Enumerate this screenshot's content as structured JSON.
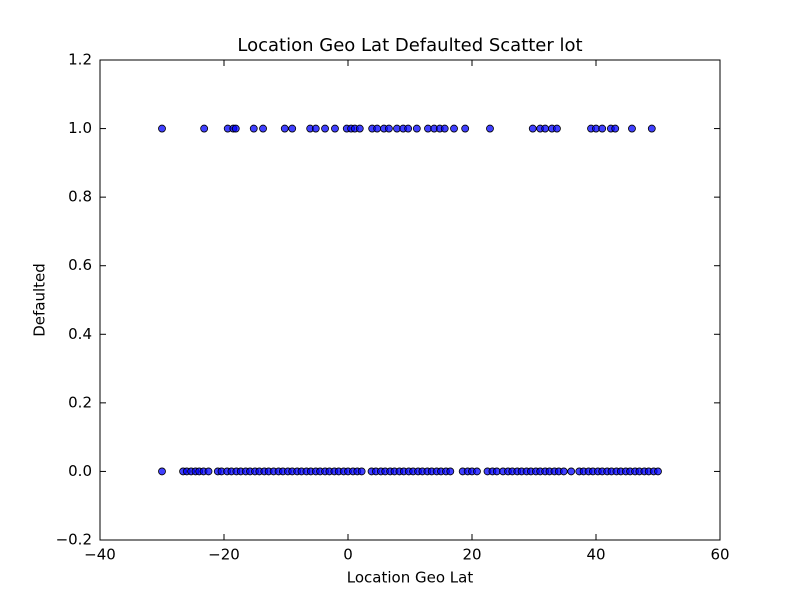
{
  "chart_data": {
    "type": "scatter",
    "title": "Location Geo Lat Defaulted Scatter lot",
    "x_label": "Location Geo Lat",
    "y_label": "Defaulted",
    "xlim": [
      -40,
      60
    ],
    "ylim": [
      -0.2,
      1.2
    ],
    "xticks": [
      {
        "value": -40,
        "label": "−40"
      },
      {
        "value": -20,
        "label": "−20"
      },
      0,
      20,
      40,
      60
    ],
    "yticks": [
      {
        "value": -0.2,
        "label": "−0.2"
      },
      {
        "value": 0,
        "label": "0.0"
      },
      {
        "value": 0.2,
        "label": "0.2"
      },
      {
        "value": 0.4,
        "label": "0.4"
      },
      {
        "value": 0.6,
        "label": "0.6"
      },
      {
        "value": 0.8,
        "label": "0.8"
      },
      {
        "value": 1,
        "label": "1.0"
      },
      {
        "value": 1.2,
        "label": "1.2"
      }
    ],
    "series": [
      {
        "color": "#0000ff",
        "x": [
          -30,
          -23.2,
          -19.4,
          -18.5,
          -18.1,
          -15.2,
          -13.7,
          -10.2,
          -9,
          -6.1,
          -5.2,
          -3.7,
          -2.1,
          -0.2,
          0.5,
          1.1,
          1.9,
          3.9,
          4.7,
          5.8,
          6.6,
          7.9,
          8.9,
          9.7,
          11.1,
          12.9,
          13.9,
          14.8,
          15.6,
          17.1,
          18.9,
          22.9,
          29.8,
          31,
          31.8,
          32.9,
          33.7,
          39.2,
          40,
          41,
          42.4,
          43.1,
          45.8,
          49
        ],
        "values": [
          1,
          1,
          1,
          1,
          1,
          1,
          1,
          1,
          1,
          1,
          1,
          1,
          1,
          1,
          1,
          1,
          1,
          1,
          1,
          1,
          1,
          1,
          1,
          1,
          1,
          1,
          1,
          1,
          1,
          1,
          1,
          1,
          1,
          1,
          1,
          1,
          1,
          1,
          1,
          1,
          1,
          1,
          1,
          1
        ]
      },
      {
        "color": "#0000ff",
        "x": [
          -30,
          -26.6,
          -26,
          -25.3,
          -24.6,
          -24,
          -23.3,
          -22.5,
          -21,
          -20.4,
          -19.5,
          -18.8,
          -18,
          -17.3,
          -16.5,
          -15.8,
          -15,
          -14.3,
          -13.5,
          -12.8,
          -12,
          -11.2,
          -10.5,
          -9.7,
          -9,
          -8.2,
          -7.5,
          -6.7,
          -6,
          -5.2,
          -4.5,
          -3.7,
          -3,
          -2.2,
          -1.5,
          -0.7,
          0,
          0.8,
          1.5,
          2.2,
          3.8,
          4.5,
          5.3,
          6,
          6.8,
          7.5,
          8.3,
          9,
          9.8,
          10.5,
          11.3,
          12,
          12.8,
          13.5,
          14.3,
          15,
          15.8,
          16.5,
          18.5,
          19.3,
          20,
          20.8,
          22.5,
          23.3,
          24,
          25,
          25.8,
          26.5,
          27.3,
          28,
          28.8,
          29.5,
          30.3,
          31,
          31.8,
          32.5,
          33.3,
          34,
          34.8,
          36,
          37.3,
          38,
          38.8,
          39.5,
          40.3,
          41,
          41.8,
          42.5,
          43.3,
          44,
          44.8,
          45.5,
          46.3,
          47,
          47.8,
          48.5,
          49.3,
          50
        ],
        "values": [
          0,
          0,
          0,
          0,
          0,
          0,
          0,
          0,
          0,
          0,
          0,
          0,
          0,
          0,
          0,
          0,
          0,
          0,
          0,
          0,
          0,
          0,
          0,
          0,
          0,
          0,
          0,
          0,
          0,
          0,
          0,
          0,
          0,
          0,
          0,
          0,
          0,
          0,
          0,
          0,
          0,
          0,
          0,
          0,
          0,
          0,
          0,
          0,
          0,
          0,
          0,
          0,
          0,
          0,
          0,
          0,
          0,
          0,
          0,
          0,
          0,
          0,
          0,
          0,
          0,
          0,
          0,
          0,
          0,
          0,
          0,
          0,
          0,
          0,
          0,
          0,
          0,
          0,
          0,
          0,
          0,
          0,
          0,
          0,
          0,
          0,
          0,
          0,
          0,
          0,
          0,
          0,
          0,
          0,
          0,
          0,
          0,
          0
        ]
      }
    ]
  }
}
